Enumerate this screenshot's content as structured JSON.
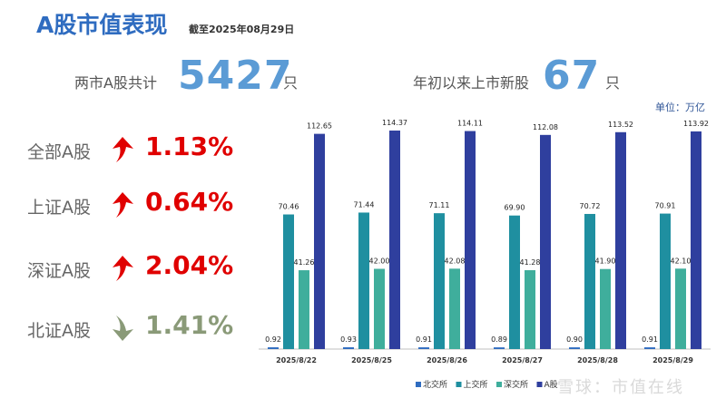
{
  "header": {
    "title": "A股市值表现",
    "as_of": "截至2025年08月29日"
  },
  "stats": {
    "total": {
      "label": "两市A股共计",
      "value": "5427",
      "unit": "只"
    },
    "new": {
      "label": "年初以来上市新股",
      "value": "67",
      "unit": "只"
    },
    "units_label": "单位：万亿"
  },
  "indices": [
    {
      "label": "全部A股",
      "value": "1.13%",
      "direction": "up"
    },
    {
      "label": "上证A股",
      "value": "0.64%",
      "direction": "up"
    },
    {
      "label": "深证A股",
      "value": "2.04%",
      "direction": "up"
    },
    {
      "label": "北证A股",
      "value": "1.41%",
      "direction": "down"
    }
  ],
  "colors": {
    "up": "#e00000",
    "down": "#8a9a78",
    "series": [
      "#2f6cc0",
      "#1f8fa0",
      "#3fae9c",
      "#2f3f9e"
    ]
  },
  "chart_data": {
    "type": "bar",
    "categories": [
      "2025/8/22",
      "2025/8/25",
      "2025/8/26",
      "2025/8/27",
      "2025/8/28",
      "2025/8/29"
    ],
    "series": [
      {
        "name": "北交所",
        "values": [
          0.92,
          0.93,
          0.91,
          0.89,
          0.9,
          0.91
        ]
      },
      {
        "name": "上交所",
        "values": [
          70.46,
          71.44,
          71.11,
          69.9,
          70.72,
          70.91
        ]
      },
      {
        "name": "深交所",
        "values": [
          41.26,
          42.0,
          42.08,
          41.28,
          41.9,
          42.1
        ]
      },
      {
        "name": "A股",
        "values": [
          112.65,
          114.37,
          114.11,
          112.08,
          113.52,
          113.92
        ]
      }
    ],
    "ylim": [
      0,
      120
    ],
    "grid": false,
    "legend": "bottom-right"
  },
  "watermark": "雪球：市值在线"
}
